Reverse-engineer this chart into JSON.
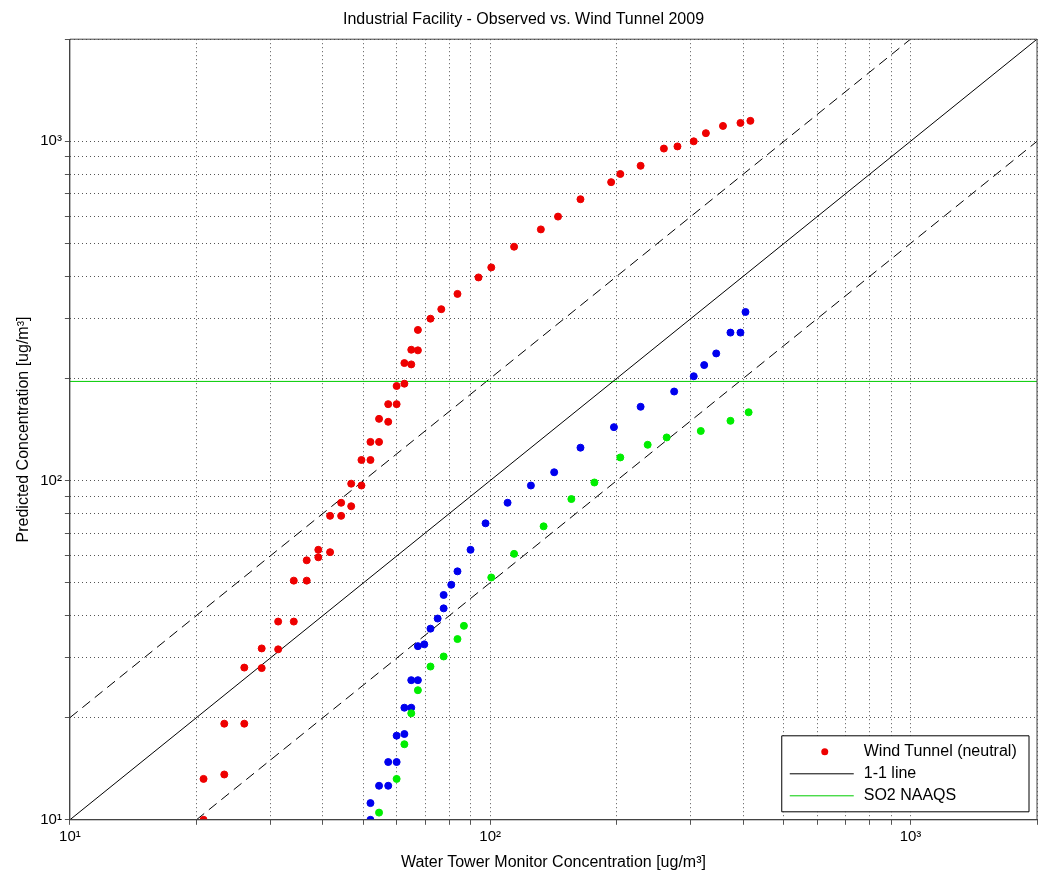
{
  "chart_data": {
    "type": "scatter",
    "title": "Industrial Facility - Observed vs. Wind Tunnel 2009",
    "xlabel": "Water Tower Monitor Concentration [ug/m³]",
    "ylabel": "Predicted Concentration [ug/m³]",
    "log": "xy",
    "grid": true,
    "legend": "bottom right",
    "marker": "circle",
    "xlim": [
      10,
      2000
    ],
    "ylim": [
      10,
      2000
    ],
    "xticks": [
      {
        "value": 10,
        "label": "10¹"
      },
      {
        "value": 20,
        "label": null
      },
      {
        "value": 30,
        "label": null
      },
      {
        "value": 40,
        "label": null
      },
      {
        "value": 50,
        "label": null
      },
      {
        "value": 60,
        "label": null
      },
      {
        "value": 70,
        "label": null
      },
      {
        "value": 80,
        "label": null
      },
      {
        "value": 90,
        "label": null
      },
      {
        "value": 100,
        "label": "10²"
      },
      {
        "value": 200,
        "label": null
      },
      {
        "value": 300,
        "label": null
      },
      {
        "value": 400,
        "label": null
      },
      {
        "value": 500,
        "label": null
      },
      {
        "value": 600,
        "label": null
      },
      {
        "value": 700,
        "label": null
      },
      {
        "value": 800,
        "label": null
      },
      {
        "value": 900,
        "label": null
      },
      {
        "value": 1000,
        "label": "10³"
      },
      {
        "value": 2000,
        "label": null
      }
    ],
    "yticks": [
      {
        "value": 10,
        "label": "10¹"
      },
      {
        "value": 20,
        "label": null
      },
      {
        "value": 30,
        "label": null
      },
      {
        "value": 40,
        "label": null
      },
      {
        "value": 50,
        "label": null
      },
      {
        "value": 60,
        "label": null
      },
      {
        "value": 70,
        "label": null
      },
      {
        "value": 80,
        "label": null
      },
      {
        "value": 90,
        "label": null
      },
      {
        "value": 100,
        "label": "10²"
      },
      {
        "value": 200,
        "label": null
      },
      {
        "value": 300,
        "label": null
      },
      {
        "value": 400,
        "label": null
      },
      {
        "value": 500,
        "label": null
      },
      {
        "value": 600,
        "label": null
      },
      {
        "value": 700,
        "label": null
      },
      {
        "value": 800,
        "label": null
      },
      {
        "value": 900,
        "label": null
      },
      {
        "value": 1000,
        "label": "10³"
      },
      {
        "value": 2000,
        "label": null
      }
    ],
    "series": [
      {
        "type": "scatter",
        "color": "#00ee00",
        "x": [
          54.4,
          59.9,
          62.5,
          64.9,
          67.3,
          72.1,
          77.5,
          83.6,
          86.6,
          100.6,
          114,
          134,
          156,
          177,
          204,
          237,
          263,
          317,
          373,
          412
        ],
        "values": [
          10.5,
          13.2,
          16.7,
          20.6,
          24.1,
          28.3,
          30.3,
          34.1,
          37.3,
          51.8,
          60.8,
          73.3,
          88.2,
          98.7,
          117,
          127.5,
          134,
          140,
          150,
          159
        ]
      },
      {
        "type": "scatter",
        "name": "Wind Tunnel (neutral)",
        "color": "#ee0000",
        "x": [
          20.8,
          20.8,
          23.3,
          23.3,
          26,
          26,
          28.6,
          28.6,
          31.3,
          31.3,
          34.1,
          34.1,
          36.6,
          36.6,
          39,
          39,
          41.6,
          41.6,
          44.2,
          44.2,
          46.7,
          46.7,
          49.4,
          49.4,
          51.9,
          51.9,
          54.4,
          54.4,
          57.2,
          57.2,
          59.9,
          59.9,
          62.5,
          62.5,
          64.9,
          64.9,
          67.3,
          67.3,
          72.1,
          76.5,
          83.6,
          93.8,
          100.6,
          114,
          132,
          145,
          164,
          194,
          204,
          228,
          259,
          279,
          305,
          326,
          358,
          394,
          416
        ],
        "values": [
          10,
          13.2,
          13.6,
          19.2,
          19.2,
          28.1,
          28,
          32,
          31.8,
          38.4,
          38.4,
          50.7,
          50.7,
          58.2,
          59.4,
          62.5,
          61.5,
          78.7,
          78.7,
          86,
          84,
          97.9,
          96.7,
          115,
          115,
          130,
          130,
          152,
          149,
          168,
          168,
          190,
          193,
          222,
          220,
          243,
          242,
          278,
          300,
          320,
          355,
          397,
          425,
          489,
          550,
          600,
          675,
          758,
          801,
          847,
          952,
          966,
          1000,
          1057,
          1110,
          1133,
          1149
        ]
      },
      {
        "type": "scatter",
        "color": "#0000ee",
        "x": [
          51.9,
          51.9,
          54.4,
          57.2,
          57.2,
          59.9,
          59.9,
          62.5,
          62.5,
          64.9,
          64.9,
          67.3,
          67.3,
          69.7,
          72.1,
          75,
          77.5,
          77.5,
          80.8,
          83.6,
          89.8,
          97.5,
          110,
          125,
          142,
          164,
          197,
          228,
          274,
          305,
          323,
          345,
          373,
          394,
          405
        ],
        "values": [
          10,
          11.2,
          12.6,
          12.6,
          14.8,
          14.8,
          17.7,
          17.9,
          21.4,
          21.4,
          25.8,
          25.8,
          32.5,
          32.9,
          36.6,
          39.2,
          42,
          46,
          49.3,
          54,
          62.5,
          74.8,
          86,
          96.7,
          105.8,
          125,
          143.7,
          165,
          183,
          203,
          219,
          237,
          273,
          273,
          314
        ]
      },
      {
        "type": "line",
        "name": "1-1 line",
        "color": "#000000",
        "line_style": "solid",
        "marker": "none",
        "x": [
          10,
          2000
        ],
        "values": [
          10,
          2000
        ]
      },
      {
        "type": "line",
        "name": "SO2 NAAQS",
        "color": "#00cc00",
        "line_style": "solid",
        "marker": "none",
        "x": [
          10,
          2000
        ],
        "values": [
          196,
          196
        ]
      },
      {
        "type": "line",
        "color": "#000000",
        "line_style": "dashed",
        "marker": "none",
        "x": [
          10,
          1000
        ],
        "values": [
          20,
          2000
        ]
      },
      {
        "type": "line",
        "color": "#000000",
        "line_style": "dashed",
        "marker": "none",
        "x": [
          20,
          2000
        ],
        "values": [
          10,
          1000
        ]
      }
    ]
  }
}
